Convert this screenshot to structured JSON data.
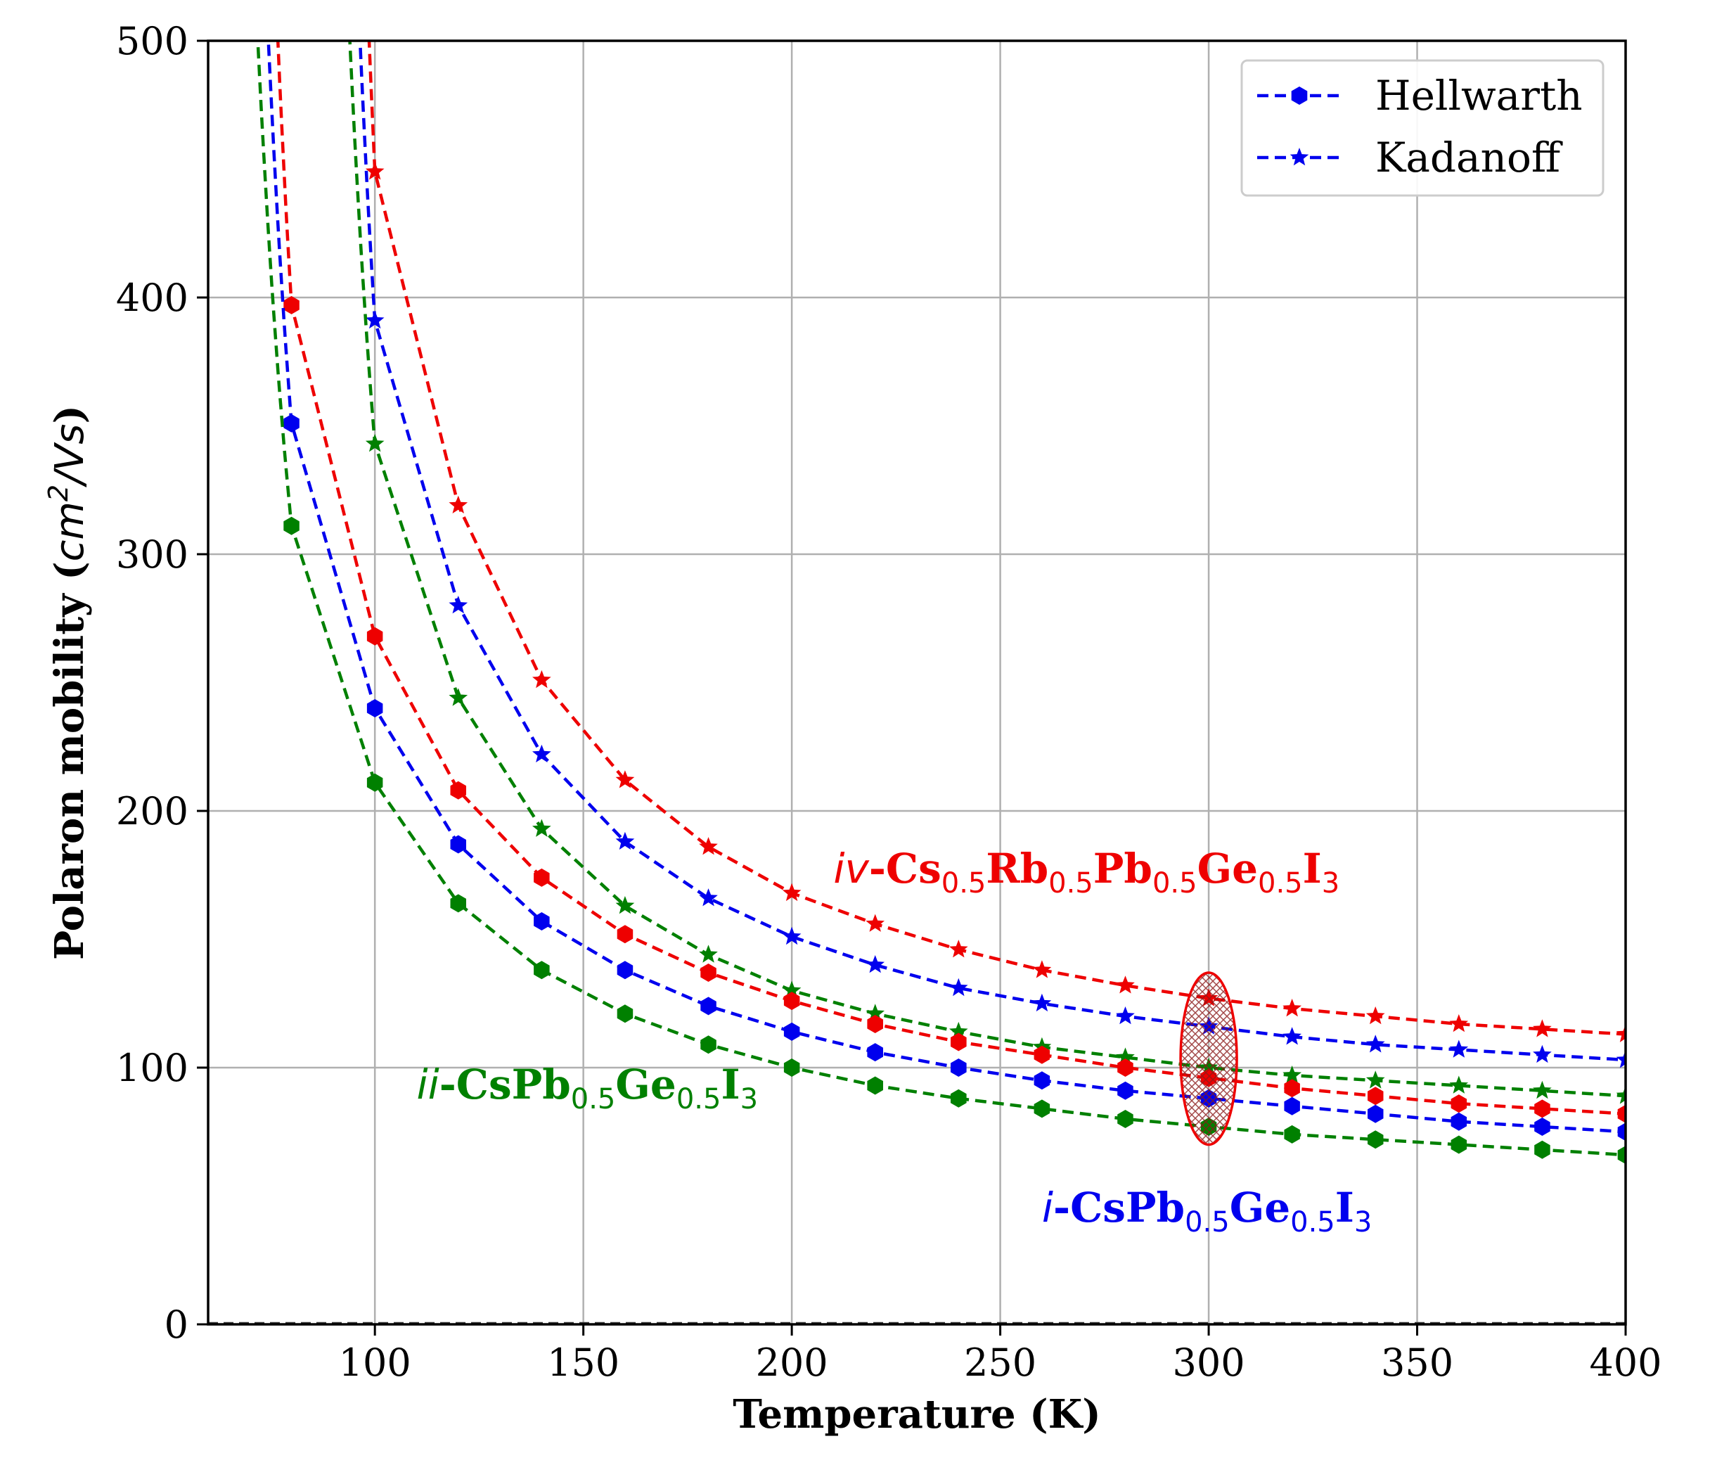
{
  "chart_data": {
    "type": "line",
    "xlabel": "Temperature (K)",
    "ylabel": {
      "main": "Polaron mobility (",
      "unit": "cm",
      "unit_sup": "2",
      "unit_tail": "/Vs",
      "close": ")"
    },
    "xlim": [
      60,
      400
    ],
    "ylim": [
      0,
      500
    ],
    "x_ticks": [
      100,
      150,
      200,
      250,
      300,
      350,
      400
    ],
    "y_ticks": [
      0,
      100,
      200,
      300,
      400,
      500
    ],
    "grid": true,
    "legend": {
      "position": "top-right",
      "entries": [
        {
          "label": "Hellwarth",
          "marker": "hexagon",
          "color": "#0000ee"
        },
        {
          "label": "Kadanoff",
          "marker": "star",
          "color": "#0000ee"
        }
      ]
    },
    "highlight": {
      "type": "ellipse",
      "x": 300,
      "y_range": [
        70,
        137
      ],
      "color": "#ee0000",
      "note": "hatched region at 300 K"
    },
    "annotations": [
      {
        "id": "iv",
        "color": "#ee0000",
        "x": 210,
        "y": 172,
        "parts": [
          {
            "t": "iv",
            "s": "it"
          },
          {
            "t": "-Cs",
            "s": "b"
          },
          {
            "t": "0.5",
            "s": "sub"
          },
          {
            "t": "Rb",
            "s": "b"
          },
          {
            "t": "0.5",
            "s": "sub"
          },
          {
            "t": "Pb",
            "s": "b"
          },
          {
            "t": "0.5",
            "s": "sub"
          },
          {
            "t": "Ge",
            "s": "b"
          },
          {
            "t": "0.5",
            "s": "sub"
          },
          {
            "t": "I",
            "s": "b"
          },
          {
            "t": "3",
            "s": "sub"
          }
        ]
      },
      {
        "id": "ii",
        "color": "#008000",
        "x": 110,
        "y": 88,
        "parts": [
          {
            "t": "ii",
            "s": "it"
          },
          {
            "t": "-CsPb",
            "s": "b"
          },
          {
            "t": "0.5",
            "s": "sub"
          },
          {
            "t": "Ge",
            "s": "b"
          },
          {
            "t": "0.5",
            "s": "sub"
          },
          {
            "t": "I",
            "s": "b"
          },
          {
            "t": "3",
            "s": "sub"
          }
        ]
      },
      {
        "id": "i",
        "color": "#0000ee",
        "x": 260,
        "y": 40,
        "parts": [
          {
            "t": "i",
            "s": "it"
          },
          {
            "t": "-CsPb",
            "s": "b"
          },
          {
            "t": "0.5",
            "s": "sub"
          },
          {
            "t": "Ge",
            "s": "b"
          },
          {
            "t": "0.5",
            "s": "sub"
          },
          {
            "t": "I",
            "s": "b"
          },
          {
            "t": "3",
            "s": "sub"
          }
        ]
      }
    ],
    "x": [
      80,
      100,
      120,
      140,
      160,
      180,
      200,
      220,
      240,
      260,
      280,
      300,
      320,
      340,
      360,
      380,
      400
    ],
    "series": [
      {
        "name": "red Kadanoff",
        "color": "#ee0000",
        "marker": "star",
        "curve": [
          75,
          700,
          1.9
        ],
        "values": [
          null,
          449,
          319,
          251,
          212,
          186,
          168,
          156,
          146,
          138,
          132,
          127,
          123,
          120,
          117,
          115,
          113
        ]
      },
      {
        "name": "blue Kadanoff",
        "color": "#0000ee",
        "marker": "star",
        "curve": [
          70,
          720,
          1.95
        ],
        "values": [
          null,
          391,
          280,
          222,
          188,
          166,
          151,
          140,
          131,
          125,
          120,
          116,
          112,
          109,
          107,
          105,
          103
        ]
      },
      {
        "name": "green Kadanoff",
        "color": "#008000",
        "marker": "star",
        "curve": [
          65,
          700,
          2.0
        ],
        "values": [
          null,
          343,
          244,
          193,
          163,
          144,
          130,
          121,
          114,
          108,
          104,
          100,
          97,
          95,
          93,
          91,
          89
        ]
      },
      {
        "name": "red Hellwarth",
        "color": "#ee0000",
        "marker": "hexagon",
        "curve": [
          50,
          750,
          2.0
        ],
        "values": [
          397,
          268,
          208,
          174,
          152,
          137,
          126,
          117,
          110,
          105,
          100,
          96,
          92,
          89,
          86,
          84,
          82
        ]
      },
      {
        "name": "blue Hellwarth",
        "color": "#0000ee",
        "marker": "hexagon",
        "curve": [
          45,
          820,
          2.05
        ],
        "values": [
          351,
          240,
          187,
          157,
          138,
          124,
          114,
          106,
          100,
          95,
          91,
          88,
          85,
          82,
          79,
          77,
          75
        ]
      },
      {
        "name": "green Hellwarth",
        "color": "#008000",
        "marker": "hexagon",
        "curve": [
          40,
          900,
          2.1
        ],
        "values": [
          311,
          211,
          164,
          138,
          121,
          109,
          100,
          93,
          88,
          84,
          80,
          77,
          74,
          72,
          70,
          68,
          66
        ]
      }
    ]
  }
}
